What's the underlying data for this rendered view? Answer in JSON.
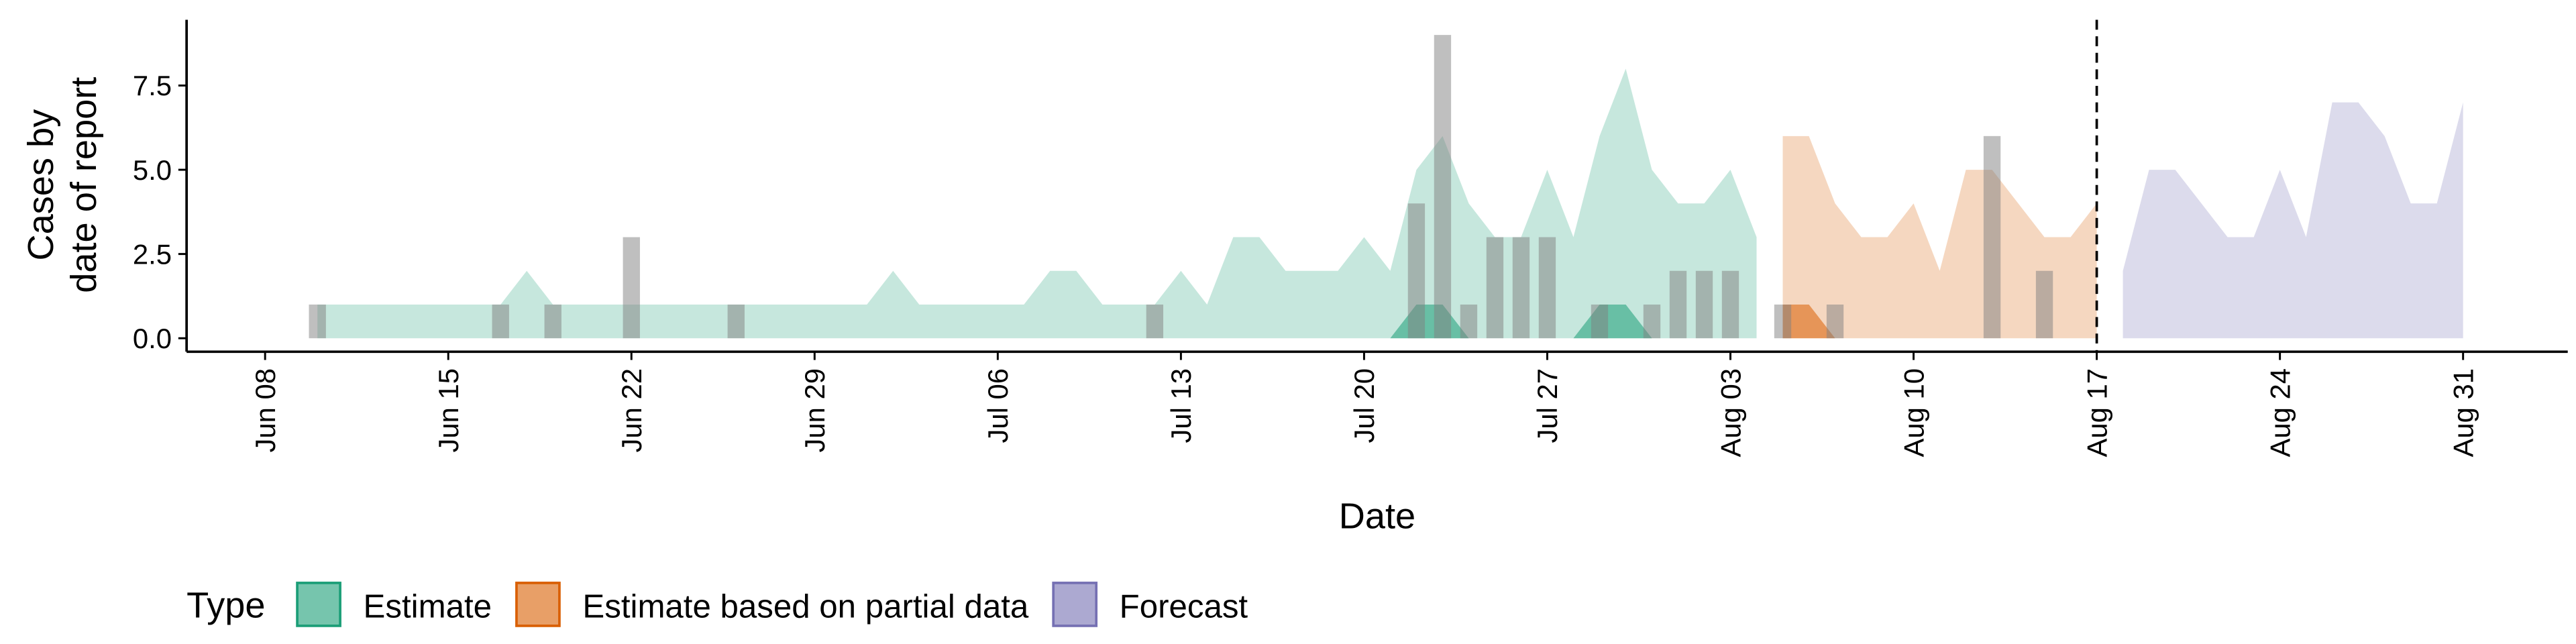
{
  "chart_data": {
    "type": "area",
    "xlabel": "Date",
    "ylabel": [
      "Cases by",
      "date of report"
    ],
    "legend_title": "Type",
    "legend_position": "bottom",
    "xlim": [
      "06-05",
      "09-04"
    ],
    "xticks": [
      {
        "value": "06-08",
        "label": "Jun 08"
      },
      {
        "value": "06-15",
        "label": "Jun 15"
      },
      {
        "value": "06-22",
        "label": "Jun 22"
      },
      {
        "value": "06-29",
        "label": "Jun 29"
      },
      {
        "value": "07-06",
        "label": "Jul 06"
      },
      {
        "value": "07-13",
        "label": "Jul 13"
      },
      {
        "value": "07-20",
        "label": "Jul 20"
      },
      {
        "value": "07-27",
        "label": "Jul 27"
      },
      {
        "value": "08-03",
        "label": "Aug 03"
      },
      {
        "value": "08-10",
        "label": "Aug 10"
      },
      {
        "value": "08-17",
        "label": "Aug 17"
      },
      {
        "value": "08-24",
        "label": "Aug 24"
      },
      {
        "value": "08-31",
        "label": "Aug 31"
      }
    ],
    "ylim": [
      -0.4,
      9.45
    ],
    "yticks": [
      {
        "value": 0,
        "label": "0.0"
      },
      2.5,
      {
        "value": 5,
        "label": "5.0"
      },
      7.5
    ],
    "vline": {
      "x": "08-17"
    },
    "series": [
      {
        "name": "Estimate",
        "color": "#1b9e77",
        "x": [
          "06-10",
          "06-17",
          "06-18",
          "06-19",
          "07-01",
          "07-02",
          "07-03",
          "07-07",
          "07-08",
          "07-09",
          "07-10",
          "07-12",
          "07-13",
          "07-14",
          "07-15",
          "07-16",
          "07-17",
          "07-19",
          "07-20",
          "07-21",
          "07-22",
          "07-23",
          "07-24",
          "07-25",
          "07-26",
          "07-27",
          "07-28",
          "07-29",
          "07-30",
          "07-31",
          "08-01",
          "08-02",
          "08-03",
          "08-04"
        ],
        "values": [
          1,
          1,
          2,
          1,
          1,
          2,
          1,
          1,
          2,
          2,
          1,
          1,
          2,
          1,
          3,
          3,
          2,
          2,
          3,
          2,
          5,
          6,
          4,
          3,
          3,
          5,
          3,
          6,
          8,
          5,
          4,
          4,
          5,
          3
        ],
        "inner_values": [
          0,
          0,
          0,
          0,
          0,
          0,
          0,
          0,
          0,
          0,
          0,
          0,
          0,
          0,
          0,
          0,
          0,
          0,
          0,
          0,
          1,
          1,
          0,
          0,
          0,
          0,
          0,
          1,
          1,
          0,
          0,
          0,
          0,
          0
        ]
      },
      {
        "name": "Estimate based on partial data",
        "color": "#d95f02",
        "x": [
          "08-05",
          "08-06",
          "08-07",
          "08-08",
          "08-09",
          "08-10",
          "08-11",
          "08-12",
          "08-13",
          "08-14",
          "08-15",
          "08-16",
          "08-17"
        ],
        "values": [
          6,
          6,
          4,
          3,
          3,
          4,
          2,
          5,
          5,
          4,
          3,
          3,
          4
        ],
        "inner_values": [
          1,
          1,
          0,
          0,
          0,
          0,
          0,
          0,
          0,
          0,
          0,
          0,
          0
        ]
      },
      {
        "name": "Forecast",
        "color": "#7570b3",
        "x": [
          "08-18",
          "08-19",
          "08-20",
          "08-21",
          "08-22",
          "08-23",
          "08-24",
          "08-25",
          "08-26",
          "08-27",
          "08-28",
          "08-29",
          "08-30",
          "08-31"
        ],
        "values": [
          2,
          5,
          5,
          4,
          3,
          3,
          5,
          3,
          7,
          7,
          6,
          4,
          4,
          7
        ]
      }
    ],
    "cases": {
      "color": "#808080",
      "x": [
        "06-10",
        "06-17",
        "06-19",
        "06-22",
        "06-26",
        "07-12",
        "07-22",
        "07-23",
        "07-24",
        "07-25",
        "07-26",
        "07-27",
        "07-29",
        "07-31",
        "08-01",
        "08-02",
        "08-03",
        "08-05",
        "08-07",
        "08-13",
        "08-15"
      ],
      "values": [
        1,
        1,
        1,
        3,
        1,
        1,
        4,
        9,
        1,
        3,
        3,
        3,
        1,
        1,
        2,
        2,
        2,
        1,
        1,
        6,
        2
      ]
    }
  }
}
